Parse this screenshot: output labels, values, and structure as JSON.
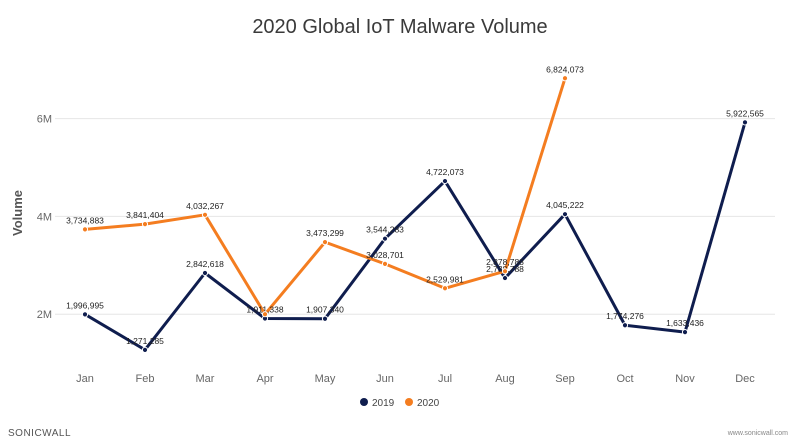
{
  "chart_data": {
    "type": "line",
    "title": "2020 Global IoT Malware Volume",
    "ylabel": "Volume",
    "xlabel": "",
    "categories": [
      "Jan",
      "Feb",
      "Mar",
      "Apr",
      "May",
      "Jun",
      "Jul",
      "Aug",
      "Sep",
      "Oct",
      "Nov",
      "Dec"
    ],
    "yticks": [
      2000000,
      4000000,
      6000000
    ],
    "ytick_labels": [
      "2M",
      "4M",
      "6M"
    ],
    "ylim": [
      900000,
      7300000
    ],
    "grid": true,
    "legend_position": "bottom",
    "series": [
      {
        "name": "2019",
        "color": "#0f1d4e",
        "values": [
          1996995,
          1271285,
          2842618,
          1911338,
          1907340,
          3544283,
          4722073,
          2738788,
          4045222,
          1774276,
          1633436,
          5922565
        ],
        "labels": [
          "1,996,995",
          "1,271,285",
          "2,842,618",
          "1,911,338",
          "1,907,340",
          "3,544,283",
          "4,722,073",
          "2,738,788",
          "4,045,222",
          "1,774,276",
          "1,633,436",
          "5,922,565"
        ]
      },
      {
        "name": "2020",
        "color": "#f47d20",
        "values": [
          3734883,
          3841404,
          4032267,
          2000000,
          3473299,
          3028701,
          2529981,
          2878788,
          6824073,
          null,
          null,
          null
        ],
        "labels": [
          "3,734,883",
          "3,841,404",
          "4,032,267",
          "",
          "3,473,299",
          "3,028,701",
          "2,529,981",
          "2,878,788",
          "6,824,073",
          "",
          "",
          ""
        ]
      }
    ]
  },
  "branding": {
    "logo_text": "SONICWALL",
    "site": "www.sonicwall.com"
  }
}
